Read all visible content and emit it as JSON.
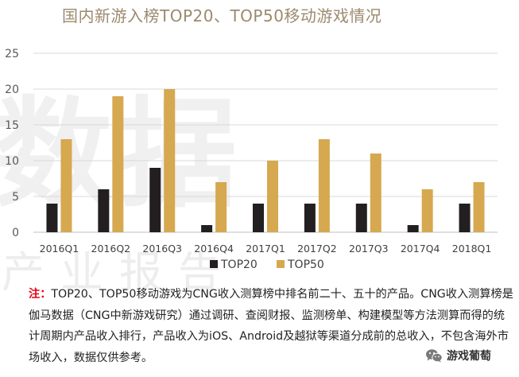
{
  "chart_data": {
    "type": "bar",
    "title": "国内新游入榜TOP20、TOP50移动游戏情况",
    "categories": [
      "2016Q1",
      "2016Q2",
      "2016Q3",
      "2016Q4",
      "2017Q1",
      "2017Q2",
      "2017Q3",
      "2017Q4",
      "2018Q1"
    ],
    "series": [
      {
        "name": "TOP20",
        "color": "#231f20",
        "values": [
          4,
          6,
          9,
          1,
          4,
          4,
          4,
          1,
          4
        ]
      },
      {
        "name": "TOP50",
        "color": "#d6a850",
        "values": [
          13,
          19,
          20,
          7,
          10,
          13,
          11,
          6,
          7
        ]
      }
    ],
    "ylim": [
      0,
      25
    ],
    "yticks": [
      0,
      5,
      10,
      15,
      20,
      25
    ],
    "grid": true,
    "legend_position": "bottom-center",
    "xlabel": "",
    "ylabel": ""
  },
  "note": {
    "lead": "注：",
    "text": "TOP20、TOP50移动游戏为CNG收入测算榜中排名前二十、五十的产品。CNG收入测算榜是伽马数据（CNG中新游戏研究）通过调研、查阅财报、监测榜单、构建模型等方法测算而得的统计周期内产品收入排行，产品收入为iOS、Android及越狱等渠道分成前的总收入，不包含海外市场收入，数据仅供参考。"
  },
  "watermark": {
    "big": "数据",
    "small": "产业报告"
  },
  "wechat": {
    "icon": "wechat-icon",
    "name": "游戏葡萄"
  }
}
